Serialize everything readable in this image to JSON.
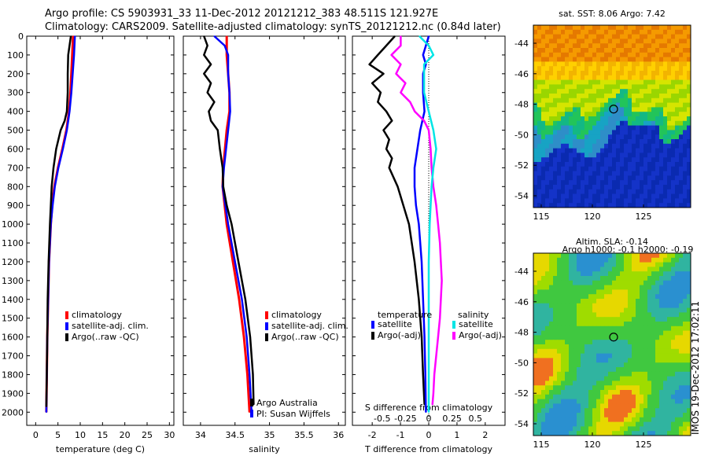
{
  "titles": {
    "line1": "Argo profile: CS 5903931_33 11-Dec-2012 20121212_383 48.511S 121.927E",
    "line2": "Climatology: CARS2009. Satellite-adjusted climatology: synTS_20121212.nc (0.84d later)"
  },
  "depth_ticks": [
    "0",
    "100",
    "200",
    "300",
    "400",
    "500",
    "600",
    "700",
    "800",
    "900",
    "1000",
    "1100",
    "1200",
    "1300",
    "1400",
    "1500",
    "1600",
    "1700",
    "1800",
    "1900",
    "2000"
  ],
  "colors": {
    "climatology": "#ff0000",
    "satellite": "#0000ff",
    "argo": "#000000",
    "sal_sat": "#00e5e5",
    "sal_argo": "#ff00ff"
  },
  "chart_data": [
    {
      "type": "line",
      "name": "temperature",
      "xlabel": "temperature (deg C)",
      "xlim": [
        -2,
        31
      ],
      "xticks": [
        "0",
        "5",
        "10",
        "15",
        "20",
        "25",
        "30"
      ],
      "xtick_values": [
        0,
        5,
        10,
        15,
        20,
        25,
        30
      ],
      "ylim": [
        2070,
        0
      ],
      "legend": [
        "climatology",
        "satellite-adj. clim.",
        "Argo(..raw -QC)"
      ],
      "series": [
        {
          "name": "climatology",
          "depth": [
            0,
            100,
            200,
            300,
            400,
            500,
            600,
            700,
            800,
            900,
            1000,
            1200,
            1400,
            1600,
            1800,
            2000
          ],
          "values": [
            8.4,
            8.2,
            8.0,
            7.8,
            7.5,
            6.9,
            6.0,
            5.0,
            4.2,
            3.7,
            3.4,
            3.0,
            2.8,
            2.6,
            2.5,
            2.4
          ]
        },
        {
          "name": "satellite-adj. clim.",
          "depth": [
            0,
            100,
            200,
            300,
            400,
            500,
            600,
            700,
            800,
            900,
            1000,
            1200,
            1400,
            1600,
            1800,
            2000
          ],
          "values": [
            8.8,
            8.6,
            8.3,
            8.0,
            7.6,
            7.0,
            6.1,
            5.1,
            4.3,
            3.8,
            3.4,
            3.0,
            2.8,
            2.6,
            2.5,
            2.4
          ]
        },
        {
          "name": "Argo(..raw -QC)",
          "depth": [
            0,
            50,
            100,
            200,
            300,
            400,
            450,
            500,
            600,
            700,
            800,
            900,
            1000,
            1200,
            1400,
            1600,
            1800,
            1970
          ],
          "values": [
            7.9,
            7.6,
            7.3,
            7.2,
            7.2,
            7.0,
            6.5,
            5.6,
            4.6,
            4.0,
            3.6,
            3.4,
            3.2,
            2.9,
            2.7,
            2.6,
            2.5,
            2.4
          ]
        }
      ]
    },
    {
      "type": "line",
      "name": "salinity",
      "xlabel": "salinity",
      "xlim": [
        33.75,
        36.1
      ],
      "xticks": [
        "34",
        "34.5",
        "35",
        "35.5",
        "36"
      ],
      "xtick_values": [
        34,
        34.5,
        35,
        35.5,
        36
      ],
      "ylim": [
        2070,
        0
      ],
      "legend": [
        "climatology",
        "satellite-adj. clim.",
        "Argo(..raw -QC)"
      ],
      "annotation": [
        "Argo Australia",
        "PI: Susan Wijffels"
      ],
      "series": [
        {
          "name": "climatology",
          "depth": [
            0,
            100,
            200,
            300,
            400,
            500,
            700,
            800,
            1000,
            1200,
            1400,
            1600,
            1800,
            2000
          ],
          "values": [
            34.38,
            34.38,
            34.4,
            34.42,
            34.42,
            34.38,
            34.33,
            34.32,
            34.38,
            34.47,
            34.56,
            34.63,
            34.68,
            34.71
          ]
        },
        {
          "name": "satellite-adj. clim.",
          "depth": [
            0,
            50,
            100,
            200,
            300,
            400,
            500,
            700,
            800,
            1000,
            1200,
            1400,
            1600,
            1800,
            2000
          ],
          "values": [
            34.2,
            34.35,
            34.4,
            34.4,
            34.42,
            34.43,
            34.4,
            34.34,
            34.32,
            34.4,
            34.5,
            34.6,
            34.67,
            34.71,
            34.74
          ]
        },
        {
          "name": "Argo(..raw -QC)",
          "depth": [
            0,
            50,
            100,
            150,
            200,
            250,
            300,
            350,
            400,
            450,
            500,
            600,
            700,
            800,
            900,
            1000,
            1200,
            1400,
            1600,
            1800,
            1960
          ],
          "values": [
            34.05,
            34.1,
            34.05,
            34.15,
            34.05,
            34.15,
            34.1,
            34.2,
            34.12,
            34.15,
            34.25,
            34.28,
            34.32,
            34.33,
            34.38,
            34.45,
            34.55,
            34.65,
            34.72,
            34.76,
            34.77
          ]
        }
      ]
    },
    {
      "type": "line",
      "name": "difference",
      "xlabel": "T difference from climatology",
      "xlabel_top": "S difference from climatology",
      "xlim": [
        -2.7,
        2.7
      ],
      "xticks": [
        "-2",
        "-1",
        "0",
        "1",
        "2"
      ],
      "xtick_values": [
        -2,
        -1,
        0,
        1,
        2
      ],
      "sticks": [
        "-0.5",
        "-0.25",
        "0",
        "0.25",
        "0.5"
      ],
      "stick_values": [
        -0.5,
        -0.25,
        0,
        0.25,
        0.5
      ],
      "ylim": [
        2070,
        0
      ],
      "legend_left_title": "temperature",
      "legend_right_title": "salinity",
      "legend_left": [
        "satellite",
        "Argo(-adj)"
      ],
      "legend_right": [
        "satellite",
        "Argo(-adj)"
      ],
      "series": [
        {
          "name": "T satellite",
          "depth": [
            0,
            50,
            100,
            150,
            200,
            300,
            400,
            500,
            600,
            700,
            800,
            900,
            1000,
            1200,
            1400,
            1600,
            1800,
            2000
          ],
          "values": [
            0.0,
            -0.1,
            -0.2,
            -0.1,
            -0.2,
            -0.2,
            -0.15,
            -0.3,
            -0.4,
            -0.5,
            -0.5,
            -0.45,
            -0.35,
            -0.25,
            -0.2,
            -0.15,
            -0.12,
            -0.1
          ]
        },
        {
          "name": "T Argo(-adj)",
          "depth": [
            0,
            50,
            100,
            150,
            200,
            250,
            300,
            350,
            400,
            450,
            500,
            550,
            600,
            650,
            700,
            800,
            900,
            1000,
            1200,
            1400,
            1600,
            1800,
            1960
          ],
          "values": [
            -1.2,
            -1.5,
            -1.8,
            -2.1,
            -1.6,
            -2.0,
            -1.7,
            -1.8,
            -1.5,
            -1.3,
            -1.6,
            -1.4,
            -1.5,
            -1.3,
            -1.4,
            -1.1,
            -0.9,
            -0.7,
            -0.5,
            -0.35,
            -0.25,
            -0.2,
            -0.15
          ]
        },
        {
          "name": "S satellite",
          "depth": [
            0,
            50,
            100,
            150,
            200,
            300,
            400,
            500,
            600,
            700,
            800,
            900,
            1000,
            1200,
            1400,
            1600,
            1800,
            2000
          ],
          "values": [
            -0.1,
            0.0,
            0.05,
            -0.05,
            -0.05,
            -0.05,
            0.0,
            0.05,
            0.08,
            0.05,
            0.03,
            0.02,
            0.01,
            0.0,
            0.0,
            0.0,
            0.0,
            0.0
          ]
        },
        {
          "name": "S Argo(-adj)",
          "depth": [
            0,
            50,
            100,
            150,
            200,
            250,
            300,
            350,
            400,
            450,
            500,
            600,
            700,
            800,
            900,
            1000,
            1100,
            1200,
            1300,
            1400,
            1500,
            1600,
            1700,
            1800,
            1900,
            1960
          ],
          "values": [
            -0.3,
            -0.3,
            -0.4,
            -0.3,
            -0.35,
            -0.25,
            -0.3,
            -0.2,
            -0.15,
            -0.05,
            0.0,
            0.02,
            0.03,
            0.05,
            0.08,
            0.1,
            0.12,
            0.13,
            0.14,
            0.13,
            0.12,
            0.1,
            0.08,
            0.06,
            0.05,
            0.04
          ]
        }
      ]
    },
    {
      "type": "heatmap",
      "name": "sst_map",
      "title": "sat. SST: 8.06 Argo: 7.42",
      "xticks": [
        "115",
        "120",
        "125"
      ],
      "yticks": [
        "-44",
        "-46",
        "-48",
        "-50",
        "-52",
        "-54"
      ]
    },
    {
      "type": "heatmap",
      "name": "sla_map",
      "title": "Altim. SLA: -0.14",
      "subtitle": "Argo h1000: -0.1 h2000: -0.19",
      "xticks": [
        "115",
        "120",
        "125"
      ],
      "yticks": [
        "-44",
        "-46",
        "-48",
        "-50",
        "-52",
        "-54"
      ]
    }
  ],
  "side_label": "IMOS 19-Dec-2012 17:02:11"
}
